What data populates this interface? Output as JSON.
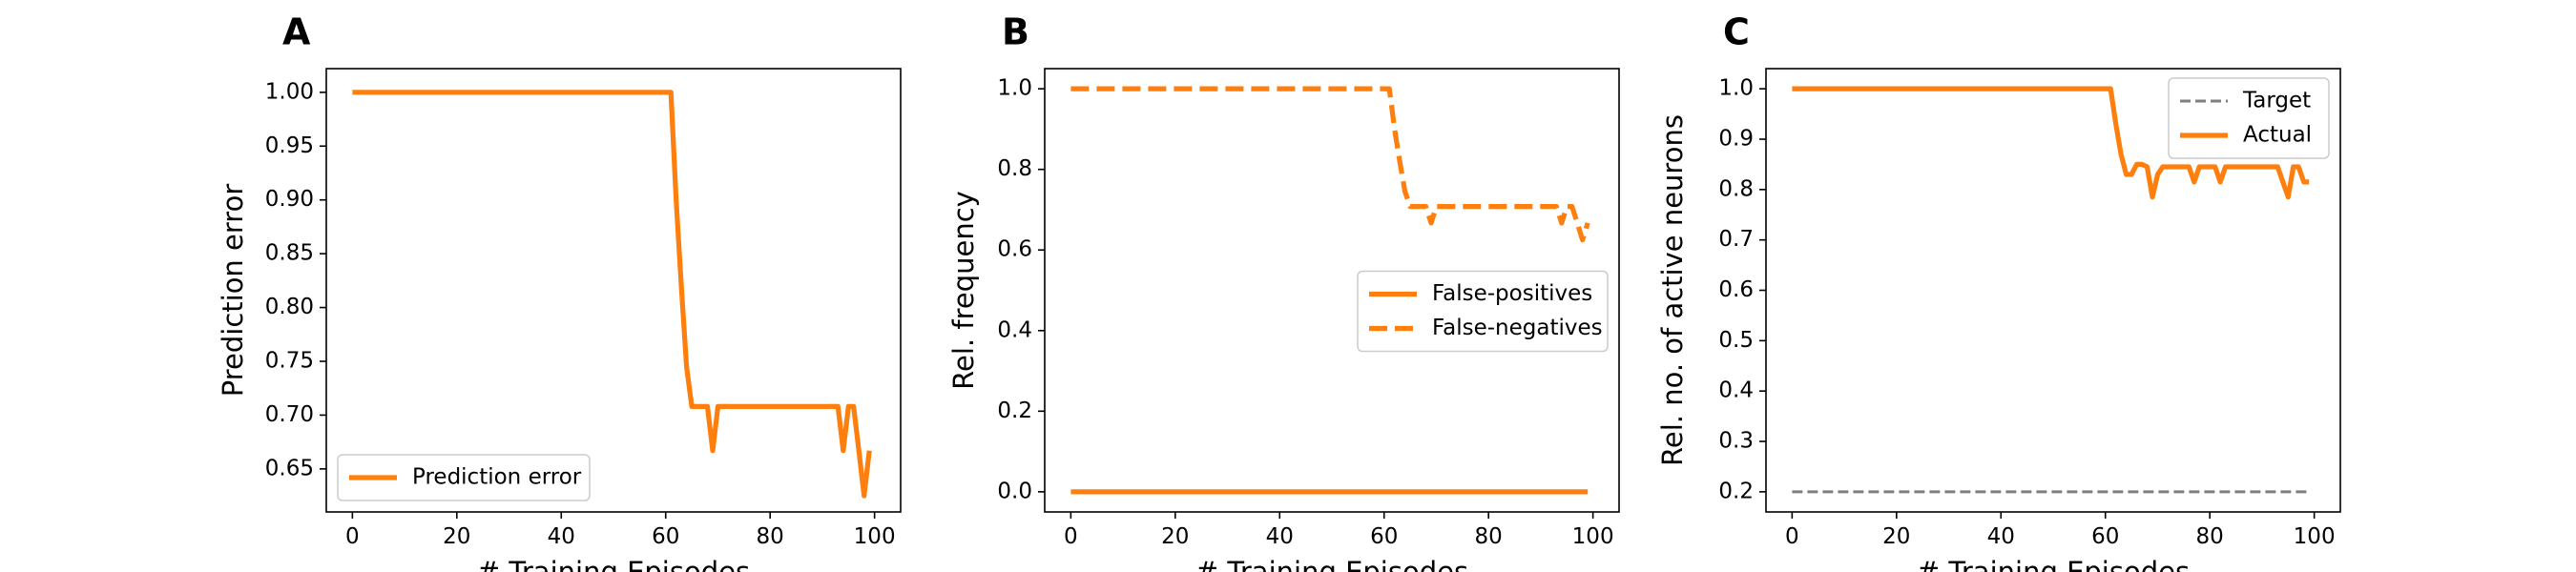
{
  "colors": {
    "orange": "#ff7f0e",
    "target_gray": "#7f7f7f",
    "axis": "#000000",
    "legend_border": "#cccccc"
  },
  "chart_data": [
    {
      "panel": "A",
      "type": "line",
      "xlabel": "# Training Episodes",
      "ylabel": "Prediction error",
      "xlim": [
        -5,
        105
      ],
      "ylim": [
        0.61,
        1.022
      ],
      "xticks": [
        "0",
        "20",
        "40",
        "60",
        "80",
        "100"
      ],
      "xtick_values": [
        0,
        20,
        40,
        60,
        80,
        100
      ],
      "yticks": [
        "0.65",
        "0.70",
        "0.75",
        "0.80",
        "0.85",
        "0.90",
        "0.95",
        "1.00"
      ],
      "ytick_values": [
        0.65,
        0.7,
        0.75,
        0.8,
        0.85,
        0.9,
        0.95,
        1.0
      ],
      "grid": false,
      "legend": {
        "placement": "lower left",
        "entries": [
          "Prediction error"
        ]
      },
      "series": [
        {
          "name": "Prediction error",
          "style": "solid",
          "x": [
            0,
            61,
            62,
            63,
            64,
            65,
            66,
            67,
            68,
            69,
            70,
            71,
            72,
            92,
            93,
            94,
            95,
            96,
            97,
            98,
            99
          ],
          "y": [
            1.0,
            1.0,
            0.9,
            0.82,
            0.745,
            0.708,
            0.708,
            0.708,
            0.708,
            0.667,
            0.708,
            0.708,
            0.708,
            0.708,
            0.708,
            0.667,
            0.708,
            0.708,
            0.667,
            0.625,
            0.667
          ]
        }
      ]
    },
    {
      "panel": "B",
      "type": "line",
      "xlabel": "# Training Episodes",
      "ylabel": "Rel. frequency",
      "xlim": [
        -5,
        105
      ],
      "ylim": [
        -0.05,
        1.05
      ],
      "xticks": [
        "0",
        "20",
        "40",
        "60",
        "80",
        "100"
      ],
      "xtick_values": [
        0,
        20,
        40,
        60,
        80,
        100
      ],
      "yticks": [
        "0.0",
        "0.2",
        "0.4",
        "0.6",
        "0.8",
        "1.0"
      ],
      "ytick_values": [
        0,
        0.2,
        0.4,
        0.6,
        0.8,
        1.0
      ],
      "grid": false,
      "legend": {
        "placement": "center right",
        "entries": [
          "False-positives",
          "False-negatives"
        ]
      },
      "series": [
        {
          "name": "False-positives",
          "style": "solid",
          "x": [
            0,
            99
          ],
          "y": [
            0.0,
            0.0
          ]
        },
        {
          "name": "False-negatives",
          "style": "dashed",
          "x": [
            0,
            61,
            62,
            63,
            64,
            65,
            66,
            67,
            68,
            69,
            70,
            71,
            72,
            92,
            93,
            94,
            95,
            96,
            97,
            98,
            99
          ],
          "y": [
            1.0,
            1.0,
            0.9,
            0.82,
            0.745,
            0.708,
            0.708,
            0.708,
            0.708,
            0.667,
            0.708,
            0.708,
            0.708,
            0.708,
            0.708,
            0.667,
            0.708,
            0.708,
            0.667,
            0.625,
            0.667
          ]
        }
      ]
    },
    {
      "panel": "C",
      "type": "line",
      "xlabel": "# Training Episodes",
      "ylabel": "Rel. no. of active neurons",
      "xlim": [
        -5,
        105
      ],
      "ylim": [
        0.16,
        1.04
      ],
      "xticks": [
        "0",
        "20",
        "40",
        "60",
        "80",
        "100"
      ],
      "xtick_values": [
        0,
        20,
        40,
        60,
        80,
        100
      ],
      "yticks": [
        "0.2",
        "0.3",
        "0.4",
        "0.5",
        "0.6",
        "0.7",
        "0.8",
        "0.9",
        "1.0"
      ],
      "ytick_values": [
        0.2,
        0.3,
        0.4,
        0.5,
        0.6,
        0.7,
        0.8,
        0.9,
        1.0
      ],
      "grid": false,
      "legend": {
        "placement": "upper right",
        "entries": [
          "Target",
          "Actual"
        ]
      },
      "series": [
        {
          "name": "Target",
          "style": "dashed-thin",
          "x": [
            0,
            99
          ],
          "y": [
            0.2,
            0.2
          ]
        },
        {
          "name": "Actual",
          "style": "solid",
          "x": [
            0,
            61,
            62,
            63,
            64,
            65,
            66,
            67,
            68,
            69,
            70,
            71,
            72,
            75,
            76,
            77,
            78,
            79,
            80,
            81,
            82,
            83,
            84,
            85,
            86,
            87,
            88,
            89,
            90,
            91,
            92,
            93,
            94,
            95,
            96,
            97,
            98,
            99
          ],
          "y": [
            1.0,
            1.0,
            0.93,
            0.87,
            0.83,
            0.83,
            0.85,
            0.85,
            0.845,
            0.785,
            0.83,
            0.845,
            0.845,
            0.845,
            0.845,
            0.815,
            0.845,
            0.845,
            0.845,
            0.845,
            0.815,
            0.845,
            0.845,
            0.845,
            0.845,
            0.845,
            0.845,
            0.845,
            0.845,
            0.845,
            0.845,
            0.845,
            0.815,
            0.785,
            0.845,
            0.845,
            0.815,
            0.815
          ]
        }
      ]
    }
  ]
}
